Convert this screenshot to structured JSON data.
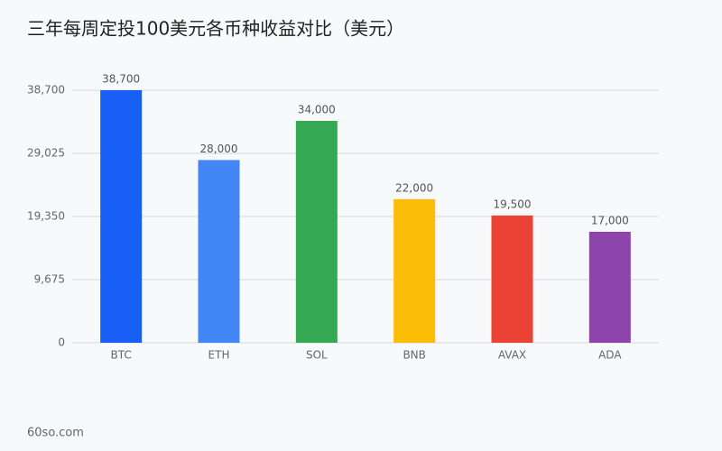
{
  "chart_data": {
    "type": "bar",
    "title": "三年每周定投100美元各币种收益对比（美元）",
    "categories": [
      "BTC",
      "ETH",
      "SOL",
      "BNB",
      "AVAX",
      "ADA"
    ],
    "values": [
      38700,
      28000,
      34000,
      22000,
      19500,
      17000
    ],
    "value_labels": [
      "38,700",
      "28,000",
      "34,000",
      "22,000",
      "19,500",
      "17,000"
    ],
    "colors": [
      "#1a5ff5",
      "#4287f5",
      "#34a853",
      "#fbbc05",
      "#ea4335",
      "#8e44ad"
    ],
    "ylim": [
      0,
      38700
    ],
    "yticks": [
      0,
      {
        "value": 9675,
        "label": "9,675"
      },
      {
        "value": 19350,
        "label": "19,350"
      },
      {
        "value": 29025,
        "label": "29,025"
      },
      {
        "value": 38700,
        "label": "38,700"
      }
    ],
    "grid": true,
    "footer": "60so.com"
  }
}
